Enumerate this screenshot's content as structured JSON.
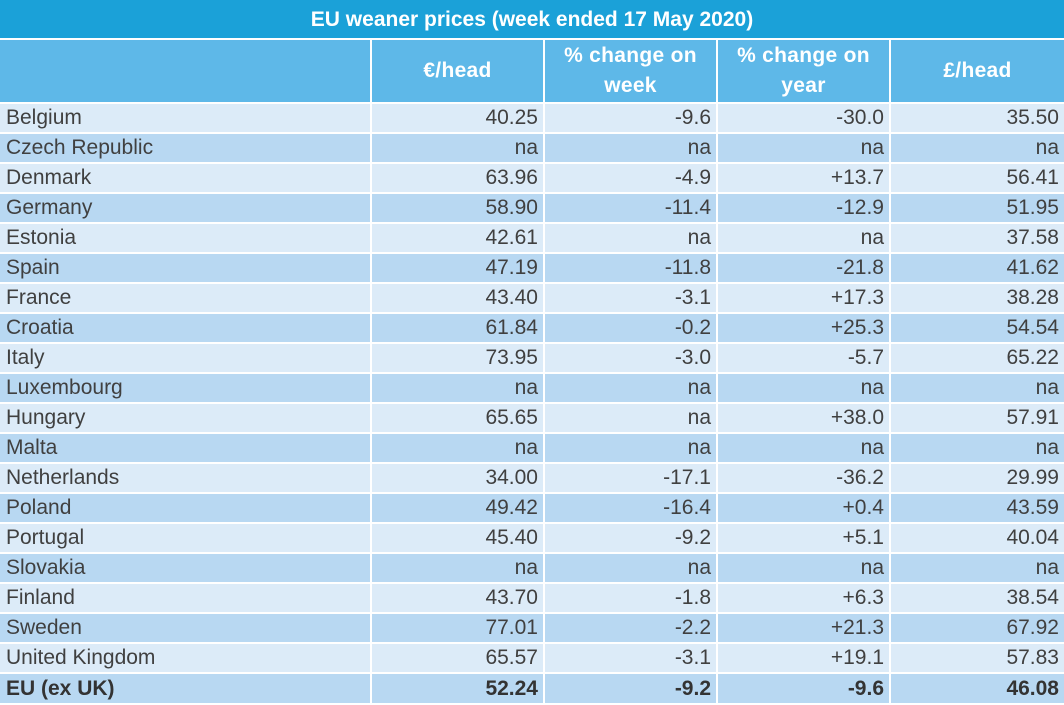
{
  "title": "EU weaner prices (week ended 17 May 2020)",
  "headers": [
    "",
    "€/head",
    "% change on week",
    "% change on year",
    "£/head"
  ],
  "rows": [
    [
      "Belgium",
      "40.25",
      "-9.6",
      "-30.0",
      "35.50"
    ],
    [
      "Czech Republic",
      "na",
      "na",
      "na",
      "na"
    ],
    [
      "Denmark",
      "63.96",
      "-4.9",
      "+13.7",
      "56.41"
    ],
    [
      "Germany",
      "58.90",
      "-11.4",
      "-12.9",
      "51.95"
    ],
    [
      "Estonia",
      "42.61",
      "na",
      "na",
      "37.58"
    ],
    [
      "Spain",
      "47.19",
      "-11.8",
      "-21.8",
      "41.62"
    ],
    [
      "France",
      "43.40",
      "-3.1",
      "+17.3",
      "38.28"
    ],
    [
      "Croatia",
      "61.84",
      "-0.2",
      "+25.3",
      "54.54"
    ],
    [
      "Italy",
      "73.95",
      "-3.0",
      "-5.7",
      "65.22"
    ],
    [
      "Luxembourg",
      "na",
      "na",
      "na",
      "na"
    ],
    [
      "Hungary",
      "65.65",
      "na",
      "+38.0",
      "57.91"
    ],
    [
      "Malta",
      "na",
      "na",
      "na",
      "na"
    ],
    [
      "Netherlands",
      "34.00",
      "-17.1",
      "-36.2",
      "29.99"
    ],
    [
      "Poland",
      "49.42",
      "-16.4",
      "+0.4",
      "43.59"
    ],
    [
      "Portugal",
      "45.40",
      "-9.2",
      "+5.1",
      "40.04"
    ],
    [
      "Slovakia",
      "na",
      "na",
      "na",
      "na"
    ],
    [
      "Finland",
      "43.70",
      "-1.8",
      "+6.3",
      "38.54"
    ],
    [
      "Sweden",
      "77.01",
      "-2.2",
      "+21.3",
      "67.92"
    ],
    [
      "United Kingdom",
      "65.57",
      "-3.1",
      "+19.1",
      "57.83"
    ],
    [
      "EU (ex UK)",
      "52.24",
      "-9.2",
      "-9.6",
      "46.08"
    ]
  ],
  "colors": {
    "title_bg": "#1ba1d8",
    "header_bg": "#5eb8e8",
    "row_light": "#dcebf8",
    "row_dark": "#b8d8f2",
    "text": "#404040"
  }
}
